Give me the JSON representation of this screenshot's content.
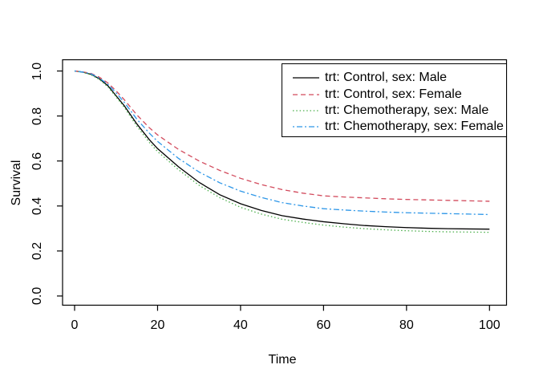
{
  "window": {
    "background": "#ffffff"
  },
  "chart_data": {
    "type": "line",
    "title": "",
    "xlabel": "Time",
    "ylabel": "Survival",
    "grid": false,
    "legend_position": "topright",
    "xlim": [
      -2.9,
      104.1
    ],
    "ylim": [
      -0.041,
      1.05
    ],
    "x_ticks": [
      0,
      20,
      40,
      60,
      80,
      100
    ],
    "x_tick_labels": [
      "0",
      "20",
      "40",
      "60",
      "80",
      "100"
    ],
    "y_ticks": [
      0.0,
      0.2,
      0.4,
      0.6,
      0.8,
      1.0
    ],
    "y_tick_labels": [
      "0.0",
      "0.2",
      "0.4",
      "0.6",
      "0.8",
      "1.0"
    ],
    "axis_color": "#000000",
    "series": [
      {
        "name": "trt: Control, sex: Male",
        "color": "#000000",
        "linestyle": "solid",
        "x": [
          0,
          2,
          4,
          6,
          8,
          10,
          12,
          15,
          18,
          20,
          25,
          30,
          35,
          40,
          45,
          50,
          55,
          60,
          65,
          70,
          75,
          80,
          85,
          90,
          95,
          100
        ],
        "y": [
          1.0,
          0.995,
          0.985,
          0.965,
          0.935,
          0.89,
          0.845,
          0.765,
          0.695,
          0.655,
          0.575,
          0.505,
          0.45,
          0.41,
          0.38,
          0.357,
          0.342,
          0.33,
          0.321,
          0.313,
          0.308,
          0.304,
          0.301,
          0.299,
          0.298,
          0.297
        ]
      },
      {
        "name": "trt: Control, sex: Female",
        "color": "#D24A5C",
        "linestyle": "dashed",
        "x": [
          0,
          2,
          4,
          6,
          8,
          10,
          12,
          15,
          18,
          20,
          25,
          30,
          35,
          40,
          45,
          50,
          55,
          60,
          65,
          70,
          75,
          80,
          85,
          90,
          95,
          100
        ],
        "y": [
          1.0,
          0.996,
          0.989,
          0.972,
          0.947,
          0.912,
          0.872,
          0.805,
          0.748,
          0.716,
          0.652,
          0.6,
          0.558,
          0.523,
          0.495,
          0.473,
          0.457,
          0.445,
          0.44,
          0.436,
          0.432,
          0.429,
          0.427,
          0.425,
          0.423,
          0.421
        ]
      },
      {
        "name": "trt: Chemotherapy, sex: Male",
        "color": "#4CB04C",
        "linestyle": "dotted",
        "x": [
          0,
          2,
          4,
          6,
          8,
          10,
          12,
          15,
          18,
          20,
          25,
          30,
          35,
          40,
          45,
          50,
          55,
          60,
          65,
          70,
          75,
          80,
          85,
          90,
          95,
          100
        ],
        "y": [
          1.0,
          0.994,
          0.983,
          0.962,
          0.93,
          0.885,
          0.838,
          0.755,
          0.683,
          0.642,
          0.562,
          0.492,
          0.437,
          0.394,
          0.364,
          0.341,
          0.327,
          0.315,
          0.306,
          0.299,
          0.294,
          0.29,
          0.287,
          0.285,
          0.284,
          0.283
        ]
      },
      {
        "name": "trt: Chemotherapy, sex: Female",
        "color": "#2E97E8",
        "linestyle": "dashdot",
        "x": [
          0,
          2,
          4,
          6,
          8,
          10,
          12,
          15,
          18,
          20,
          25,
          30,
          35,
          40,
          45,
          50,
          55,
          60,
          65,
          70,
          75,
          80,
          85,
          90,
          95,
          100
        ],
        "y": [
          1.0,
          0.995,
          0.987,
          0.968,
          0.941,
          0.903,
          0.86,
          0.786,
          0.724,
          0.687,
          0.612,
          0.551,
          0.503,
          0.466,
          0.438,
          0.415,
          0.4,
          0.388,
          0.382,
          0.377,
          0.373,
          0.37,
          0.368,
          0.366,
          0.364,
          0.362
        ]
      }
    ]
  }
}
